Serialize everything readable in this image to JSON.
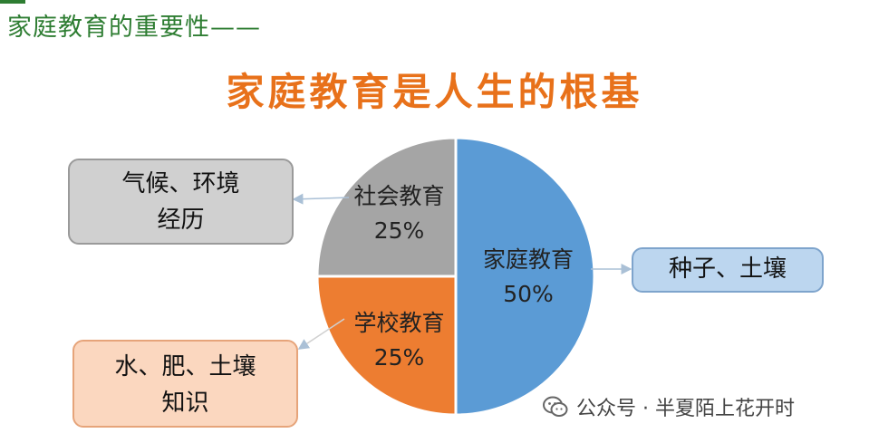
{
  "heading": "家庭教育的重要性——",
  "chart_data": {
    "type": "pie",
    "title": "家庭教育是人生的根基",
    "slices": [
      {
        "name": "家庭教育",
        "value": 50,
        "percent_label": "50%",
        "color": "#5b9bd5"
      },
      {
        "name": "学校教育",
        "value": 25,
        "percent_label": "25%",
        "color": "#ed7d31"
      },
      {
        "name": "社会教育",
        "value": 25,
        "percent_label": "25%",
        "color": "#a5a5a5"
      }
    ],
    "annotations": [
      {
        "slice": "社会教育",
        "lines": [
          "气候、环境",
          "经历"
        ]
      },
      {
        "slice": "家庭教育",
        "lines": [
          "种子、土壤"
        ]
      },
      {
        "slice": "学校教育",
        "lines": [
          "水、肥、土壤",
          "知识"
        ]
      }
    ]
  },
  "watermark": {
    "text": "公众号 · 半夏陌上花开时",
    "icon": "wechat-icon"
  }
}
